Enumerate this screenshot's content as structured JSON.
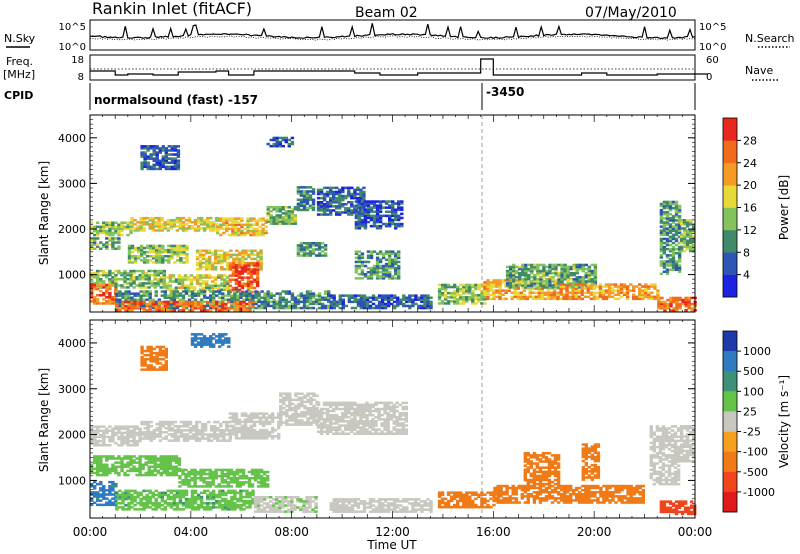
{
  "header": {
    "station": "Rankin Inlet (fitACF)",
    "beam": "Beam 02",
    "date": "07/May/2010"
  },
  "strip_noise": {
    "left_label": "N.Sky",
    "left_ticks": [
      "10^5",
      "10^0"
    ],
    "right_ticks": [
      "10^5",
      "10^0"
    ],
    "right_label": "N.Search"
  },
  "strip_freq": {
    "left_label_top": "Freq.",
    "left_label_bottom": "[MHz]",
    "left_ticks": [
      "18",
      "8"
    ],
    "right_ticks": [
      "60",
      "0"
    ],
    "right_label": "Nave"
  },
  "strip_cpid": {
    "label": "CPID",
    "program_1": "normalsound (fast) -157",
    "program_2": "-3450",
    "change_time_hours": 15.55
  },
  "time_axis": {
    "label": "Time UT",
    "ticks": [
      "00:00",
      "04:00",
      "08:00",
      "12:00",
      "16:00",
      "20:00",
      "00:00"
    ],
    "range_hours": [
      0,
      24
    ]
  },
  "chart_data": [
    {
      "type": "heatmap",
      "name": "Power",
      "ylabel": "Slant Range [km]",
      "yticks": [
        "1000",
        "2000",
        "3000",
        "4000"
      ],
      "ylim": [
        180,
        4500
      ],
      "xlim": [
        0,
        24
      ],
      "colorbar": {
        "label": "Power [dB]",
        "tick_labels": [
          "4",
          "8",
          "12",
          "16",
          "20",
          "24",
          "28"
        ],
        "colors": [
          "#1d22e0",
          "#2e55b4",
          "#3f8a6a",
          "#84c25e",
          "#e8d838",
          "#f59a25",
          "#f26a1c",
          "#e8281e"
        ]
      },
      "bands": [
        {
          "t0": 0.0,
          "t1": 1.6,
          "r": [
            1850,
            2150
          ],
          "v": 15
        },
        {
          "t0": 1.6,
          "t1": 5.0,
          "r": [
            1950,
            2250
          ],
          "v": 18
        },
        {
          "t0": 5.0,
          "t1": 7.0,
          "r": [
            1850,
            2250
          ],
          "v": 20
        },
        {
          "t0": 7.0,
          "t1": 8.2,
          "r": [
            2100,
            2500
          ],
          "v": 13
        },
        {
          "t0": 8.2,
          "t1": 8.9,
          "r": [
            2400,
            2900
          ],
          "v": 9
        },
        {
          "t0": 9.0,
          "t1": 10.8,
          "r": [
            2300,
            2900
          ],
          "v": 7
        },
        {
          "t0": 10.5,
          "t1": 12.3,
          "r": [
            2000,
            2600
          ],
          "v": 6
        },
        {
          "t0": 0.0,
          "t1": 1.2,
          "r": [
            1550,
            1800
          ],
          "v": 12
        },
        {
          "t0": 1.5,
          "t1": 3.8,
          "r": [
            1250,
            1650
          ],
          "v": 14
        },
        {
          "t0": 4.2,
          "t1": 6.8,
          "r": [
            1100,
            1550
          ],
          "v": 18
        },
        {
          "t0": 8.2,
          "t1": 9.3,
          "r": [
            1400,
            1700
          ],
          "v": 10
        },
        {
          "t0": 10.5,
          "t1": 12.2,
          "r": [
            900,
            1500
          ],
          "v": 11
        },
        {
          "t0": 0.0,
          "t1": 3.0,
          "r": [
            700,
            1100
          ],
          "v": 13
        },
        {
          "t0": 3.0,
          "t1": 5.5,
          "r": [
            650,
            1000
          ],
          "v": 16
        },
        {
          "t0": 5.5,
          "t1": 6.6,
          "r": [
            600,
            1250
          ],
          "v": 27
        },
        {
          "t0": 0.0,
          "t1": 1.0,
          "r": [
            350,
            800
          ],
          "v": 26
        },
        {
          "t0": 1.0,
          "t1": 9.5,
          "r": [
            250,
            650
          ],
          "v": 10
        },
        {
          "t0": 1.0,
          "t1": 6.5,
          "r": [
            200,
            400
          ],
          "v": 26
        },
        {
          "t0": 9.5,
          "t1": 13.5,
          "r": [
            250,
            550
          ],
          "v": 7
        },
        {
          "t0": 13.8,
          "t1": 15.6,
          "r": [
            350,
            800
          ],
          "v": 14
        },
        {
          "t0": 15.6,
          "t1": 18.5,
          "r": [
            450,
            900
          ],
          "v": 21
        },
        {
          "t0": 16.5,
          "t1": 20.0,
          "r": [
            700,
            1200
          ],
          "v": 12
        },
        {
          "t0": 18.5,
          "t1": 22.5,
          "r": [
            450,
            800
          ],
          "v": 22
        },
        {
          "t0": 22.5,
          "t1": 24.0,
          "r": [
            200,
            500
          ],
          "v": 25
        },
        {
          "t0": 22.6,
          "t1": 23.4,
          "r": [
            1000,
            2600
          ],
          "v": 11
        },
        {
          "t0": 23.4,
          "t1": 24.0,
          "r": [
            1500,
            2200
          ],
          "v": 13
        },
        {
          "t0": 2.0,
          "t1": 3.5,
          "r": [
            3300,
            3800
          ],
          "v": 6
        },
        {
          "t0": 7.0,
          "t1": 8.0,
          "r": [
            3800,
            4000
          ],
          "v": 7
        }
      ]
    },
    {
      "type": "heatmap",
      "name": "Velocity",
      "ylabel": "Slant Range [km]",
      "yticks": [
        "1000",
        "2000",
        "3000",
        "4000"
      ],
      "ylim": [
        180,
        4500
      ],
      "xlim": [
        0,
        24
      ],
      "colorbar": {
        "label": "Velocity [m s⁻¹]",
        "tick_labels": [
          "1000",
          "500",
          "100",
          "25",
          "-25",
          "-100",
          "-500",
          "-1000"
        ],
        "colors": [
          "#1e3aa8",
          "#2e7bbf",
          "#3f9078",
          "#66c34a",
          "#c8c8c0",
          "#f5a020",
          "#f07a16",
          "#f0441c",
          "#e01a1a"
        ]
      },
      "bands": [
        {
          "t0": 0.0,
          "t1": 2.0,
          "r": [
            1750,
            2200
          ],
          "v": 0
        },
        {
          "t0": 2.0,
          "t1": 5.5,
          "r": [
            1850,
            2300
          ],
          "v": 0
        },
        {
          "t0": 5.5,
          "t1": 7.5,
          "r": [
            1900,
            2450
          ],
          "v": 0
        },
        {
          "t0": 7.5,
          "t1": 9.0,
          "r": [
            2200,
            2900
          ],
          "v": 0
        },
        {
          "t0": 9.0,
          "t1": 12.5,
          "r": [
            2000,
            2700
          ],
          "v": 0
        },
        {
          "t0": 0.0,
          "t1": 3.5,
          "r": [
            1100,
            1550
          ],
          "v": 60
        },
        {
          "t0": 3.5,
          "t1": 7.0,
          "r": [
            850,
            1250
          ],
          "v": 60
        },
        {
          "t0": 0.0,
          "t1": 1.0,
          "r": [
            450,
            950
          ],
          "v": 700
        },
        {
          "t0": 1.0,
          "t1": 6.5,
          "r": [
            350,
            800
          ],
          "v": 80
        },
        {
          "t0": 6.5,
          "t1": 9.0,
          "r": [
            300,
            650
          ],
          "v": 20
        },
        {
          "t0": 9.5,
          "t1": 13.5,
          "r": [
            300,
            600
          ],
          "v": 5
        },
        {
          "t0": 13.8,
          "t1": 16.0,
          "r": [
            400,
            750
          ],
          "v": -150
        },
        {
          "t0": 16.0,
          "t1": 22.0,
          "r": [
            500,
            900
          ],
          "v": -200
        },
        {
          "t0": 17.2,
          "t1": 18.6,
          "r": [
            900,
            1600
          ],
          "v": -300
        },
        {
          "t0": 19.5,
          "t1": 20.2,
          "r": [
            1000,
            1800
          ],
          "v": -300
        },
        {
          "t0": 22.2,
          "t1": 23.4,
          "r": [
            900,
            2200
          ],
          "v": 10
        },
        {
          "t0": 23.4,
          "t1": 24.0,
          "r": [
            1400,
            2200
          ],
          "v": 15
        },
        {
          "t0": 22.6,
          "t1": 24.0,
          "r": [
            250,
            550
          ],
          "v": -700
        },
        {
          "t0": 2.0,
          "t1": 3.0,
          "r": [
            3400,
            3900
          ],
          "v": -300
        },
        {
          "t0": 4.0,
          "t1": 5.5,
          "r": [
            3900,
            4200
          ],
          "v": 700
        }
      ]
    }
  ]
}
